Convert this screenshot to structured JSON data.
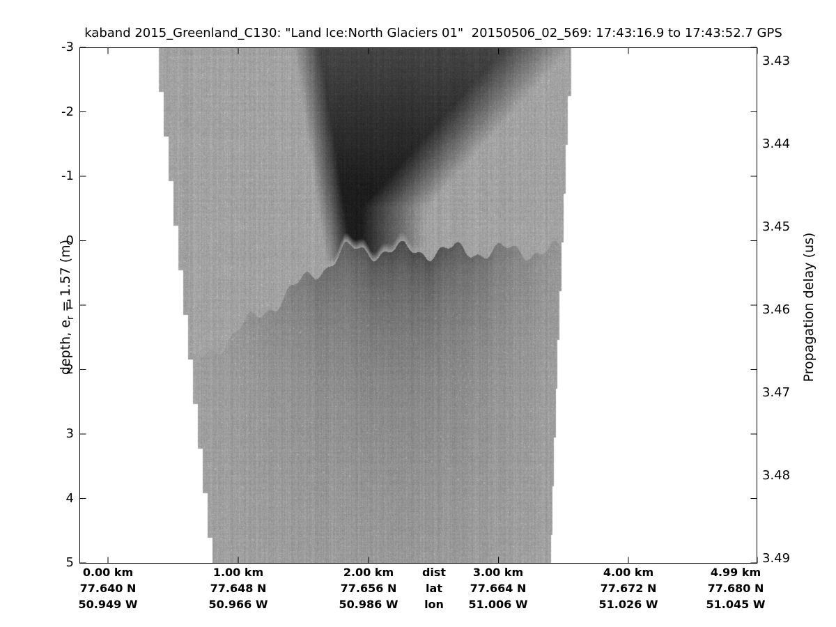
{
  "title": "kaband 2015_Greenland_C130: \"Land Ice:North Glaciers 01\"  20150506_02_569: 17:43:16.9 to 17:43:52.7 GPS",
  "left_axis": {
    "label_pre": "depth, e",
    "label_sub": "r",
    "label_post": " = 1.57 (m)",
    "ticks": [
      "-3",
      "-2",
      "-1",
      "0",
      "1",
      "2",
      "3",
      "4",
      "5"
    ]
  },
  "right_axis": {
    "label": "Propagation delay (us)",
    "ticks": [
      "3.43",
      "3.44",
      "3.45",
      "3.46",
      "3.47",
      "3.48",
      "3.49"
    ]
  },
  "bottom_axis": {
    "columns": [
      {
        "dist": "0.00 km",
        "lat": "77.640 N",
        "lon": "50.949 W"
      },
      {
        "dist": "1.00 km",
        "lat": "77.648 N",
        "lon": "50.966 W"
      },
      {
        "dist": "2.00 km",
        "lat": "77.656 N",
        "lon": "50.986 W"
      },
      {
        "dist": "dist",
        "lat": "lat",
        "lon": "lon"
      },
      {
        "dist": "3.00 km",
        "lat": "77.664 N",
        "lon": "51.006 W"
      },
      {
        "dist": "4.00 km",
        "lat": "77.672 N",
        "lon": "51.026 W"
      },
      {
        "dist": "4.99 km",
        "lat": "77.680 N",
        "lon": "51.045 W"
      }
    ]
  },
  "colors": {
    "background": "#ffffff",
    "no_data": "#ffffff",
    "swath_gray": "#a3a3a3",
    "strong_return": "#1e1e1e",
    "axis": "#000000"
  },
  "chart_data": {
    "type": "heatmap",
    "title": "kaband 2015_Greenland_C130: \"Land Ice:North Glaciers 01\"  20150506_02_569: 17:43:16.9 to 17:43:52.7 GPS",
    "x_axis": {
      "ticks_km": [
        0.0,
        1.0,
        2.0,
        3.0,
        4.0,
        4.99
      ],
      "lat_deg_N": [
        77.64,
        77.648,
        77.656,
        77.664,
        77.672,
        77.68
      ],
      "lon_deg_W": [
        50.949,
        50.966,
        50.986,
        51.006,
        51.026,
        51.045
      ],
      "middle_legend": [
        "dist",
        "lat",
        "lon"
      ]
    },
    "y_axis_left": {
      "label": "depth, e_r = 1.57 (m)",
      "ticks": [
        -3,
        -2,
        -1,
        0,
        1,
        2,
        3,
        4,
        5
      ],
      "range": [
        -3,
        5
      ]
    },
    "y_axis_right": {
      "label": "Propagation delay (us)",
      "ticks": [
        3.43,
        3.44,
        3.45,
        3.46,
        3.47,
        3.48,
        3.49
      ]
    },
    "colormap": "inverted grayscale; dark = strong radar return, white = no data",
    "features": {
      "data_swath": "trapezoidal echogram swath, white no-data margins with stepped staircase edges; swath spans ~0.6–3.6 km at top narrowing to ~1.0–3.5 km at bottom",
      "strong_return_plume": "dark high-return plume from top of record (depth -3 m) between ~1.6 and ~3.6 km, narrowing with depth, right side fading diagonally",
      "surface_return": "abrupt wavy bottom edge of dark plume at depth ~0.0–0.4 m (delay ~3.452–3.455 us) between ~1.7 and ~2.6 km",
      "subsurface_scatter": "diffuse darker column below surface return near ~1.8–3.0 km fading out by ~4 m depth",
      "grid": "off"
    }
  }
}
